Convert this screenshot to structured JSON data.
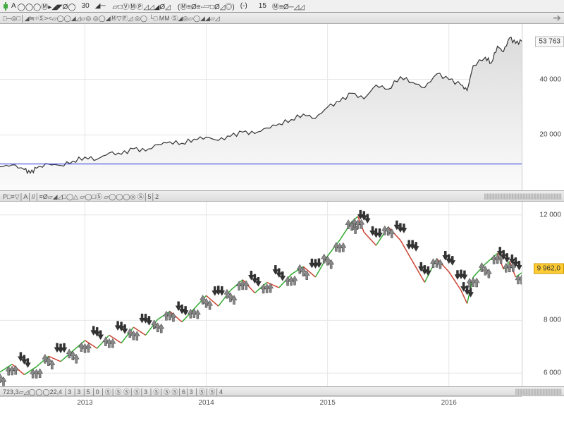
{
  "toolbar": {
    "symbol_prefix": "A",
    "interval1": "30",
    "interval2": "15",
    "glyphs1": "◯◯◯Ⓜ▸◢◤Ø◯",
    "glyphs2": "◢─",
    "glyphs3": "▱□ⓋⓂⓅ◿◿◢Ø◿",
    "glyphs4": "(Ⓜ≡Ø≡-▱□Ø◿◎)",
    "minus": "(-)",
    "glyphs5": "Ⓜ≡Ø─◿◿"
  },
  "subtoolbar1": {
    "text": "□─◎□│◢≒÷Ⓢ><▱◯◯◢◿▱◎  ◎◯◢Ⓜ▽Ⓟ◿ ◎◯ └□  MM Ⓢ◢◎▱◯◢◢▱◿"
  },
  "subtoolbar2": {
    "text": "P□≡▽│A│//│≡Ø▱◢◿□◯△ ▱◯□Ⓢ ▱◯◯◯◎ Ⓢ│5│2"
  },
  "bottombar": {
    "text": "723,3▱◿◯◯◯22,4   │3      │3      │5 │0 │Ⓢ│Ⓢ Ⓢ│Ⓢ│3    │Ⓢ│Ⓢ Ⓢ│6│3      │Ⓢ│Ⓢ│4"
  },
  "upper_chart": {
    "type": "area",
    "xlim": [
      2012.3,
      2016.6
    ],
    "ylim": [
      0,
      60000
    ],
    "yticks": [
      20000,
      40000
    ],
    "ytick_labels": [
      "20 000",
      "40 000"
    ],
    "current_value": 53763,
    "current_label": "53 763",
    "baseline_y": 9500,
    "baseline_color": "#2233dd",
    "line_color": "#333333",
    "fill_color_top": "#dcdcdc",
    "fill_color_bottom": "#fbfbfb",
    "background": "#ffffff",
    "grid_color": "#e5e5e5",
    "data": [
      [
        2012.3,
        8500
      ],
      [
        2012.4,
        9200
      ],
      [
        2012.5,
        7500
      ],
      [
        2012.55,
        6200
      ],
      [
        2012.6,
        8000
      ],
      [
        2012.7,
        9500
      ],
      [
        2012.8,
        9000
      ],
      [
        2012.9,
        10500
      ],
      [
        2013.0,
        12000
      ],
      [
        2013.1,
        11200
      ],
      [
        2013.2,
        13500
      ],
      [
        2013.3,
        13000
      ],
      [
        2013.4,
        15000
      ],
      [
        2013.5,
        14200
      ],
      [
        2013.6,
        16500
      ],
      [
        2013.7,
        17500
      ],
      [
        2013.8,
        17000
      ],
      [
        2013.9,
        18500
      ],
      [
        2014.0,
        19200
      ],
      [
        2014.1,
        18000
      ],
      [
        2014.2,
        19500
      ],
      [
        2014.3,
        21000
      ],
      [
        2014.4,
        20500
      ],
      [
        2014.5,
        22500
      ],
      [
        2014.6,
        24000
      ],
      [
        2014.7,
        25500
      ],
      [
        2014.8,
        27500
      ],
      [
        2014.9,
        26000
      ],
      [
        2015.0,
        30000
      ],
      [
        2015.1,
        32000
      ],
      [
        2015.2,
        35000
      ],
      [
        2015.3,
        33000
      ],
      [
        2015.4,
        38000
      ],
      [
        2015.5,
        36500
      ],
      [
        2015.6,
        41000
      ],
      [
        2015.7,
        39000
      ],
      [
        2015.8,
        37000
      ],
      [
        2015.9,
        42000
      ],
      [
        2016.0,
        40000
      ],
      [
        2016.1,
        38000
      ],
      [
        2016.15,
        36000
      ],
      [
        2016.2,
        45000
      ],
      [
        2016.3,
        48000
      ],
      [
        2016.35,
        46000
      ],
      [
        2016.4,
        52000
      ],
      [
        2016.45,
        50000
      ],
      [
        2016.5,
        55000
      ],
      [
        2016.55,
        53000
      ],
      [
        2016.6,
        53763
      ]
    ]
  },
  "lower_chart": {
    "type": "line-arrows",
    "xlim": [
      2012.3,
      2016.6
    ],
    "ylim": [
      5500,
      12500
    ],
    "yticks": [
      6000,
      8000,
      12000
    ],
    "ytick_labels": [
      "6 000",
      "8 000",
      "12 000"
    ],
    "current_value": 9962.0,
    "current_label": "9 962,0",
    "line_color": "#444444",
    "up_arrow_color": "#888888",
    "down_arrow_color": "#333333",
    "accent_green": "#33aa33",
    "accent_red": "#cc4433",
    "accent_orange": "#dd8822",
    "background": "#ffffff",
    "grid_color": "#e5e5e5",
    "data": [
      [
        2012.3,
        6200
      ],
      [
        2012.4,
        6500
      ],
      [
        2012.5,
        6100
      ],
      [
        2012.6,
        6400
      ],
      [
        2012.7,
        6800
      ],
      [
        2012.8,
        6600
      ],
      [
        2012.9,
        7000
      ],
      [
        2013.0,
        7400
      ],
      [
        2013.1,
        7100
      ],
      [
        2013.2,
        7600
      ],
      [
        2013.3,
        7300
      ],
      [
        2013.4,
        7900
      ],
      [
        2013.5,
        7600
      ],
      [
        2013.6,
        8200
      ],
      [
        2013.7,
        8500
      ],
      [
        2013.8,
        8100
      ],
      [
        2013.9,
        8600
      ],
      [
        2014.0,
        9100
      ],
      [
        2014.1,
        8700
      ],
      [
        2014.2,
        9300
      ],
      [
        2014.3,
        9700
      ],
      [
        2014.4,
        9200
      ],
      [
        2014.5,
        9600
      ],
      [
        2014.6,
        9400
      ],
      [
        2014.7,
        9900
      ],
      [
        2014.8,
        10200
      ],
      [
        2014.9,
        9800
      ],
      [
        2015.0,
        10600
      ],
      [
        2015.1,
        11200
      ],
      [
        2015.2,
        11900
      ],
      [
        2015.25,
        12100
      ],
      [
        2015.3,
        11500
      ],
      [
        2015.4,
        11000
      ],
      [
        2015.5,
        11700
      ],
      [
        2015.6,
        11200
      ],
      [
        2015.7,
        10400
      ],
      [
        2015.8,
        9600
      ],
      [
        2015.9,
        10500
      ],
      [
        2016.0,
        10000
      ],
      [
        2016.1,
        9300
      ],
      [
        2016.15,
        8800
      ],
      [
        2016.2,
        9800
      ],
      [
        2016.3,
        10300
      ],
      [
        2016.4,
        10700
      ],
      [
        2016.45,
        10100
      ],
      [
        2016.5,
        10400
      ],
      [
        2016.55,
        9800
      ],
      [
        2016.6,
        9962
      ]
    ]
  },
  "xaxis": {
    "ticks": [
      2013,
      2014,
      2015,
      2016
    ],
    "labels": [
      "2013",
      "2014",
      "2015",
      "2016"
    ]
  }
}
